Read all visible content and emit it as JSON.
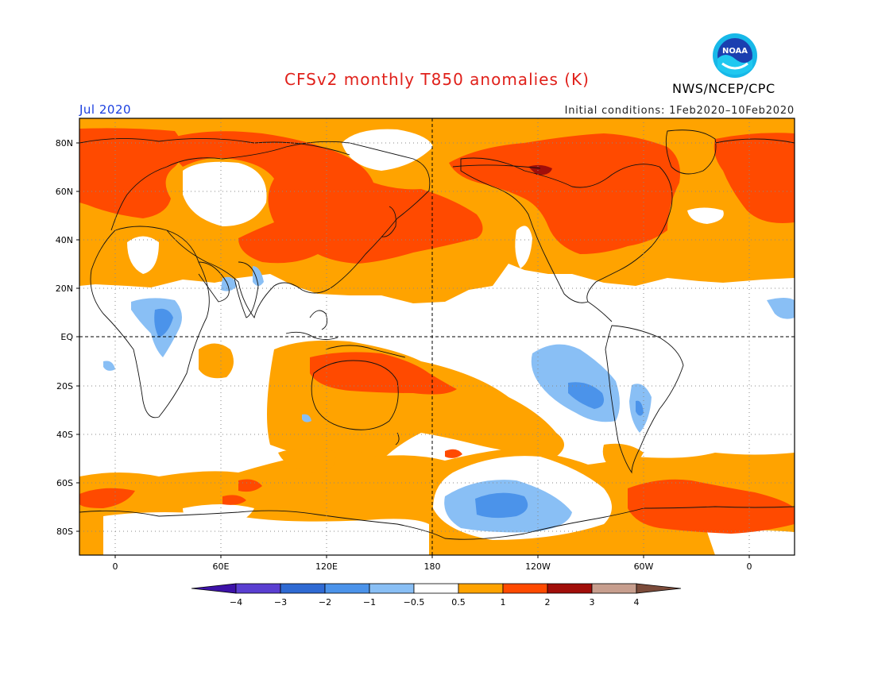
{
  "header": {
    "title": "CFSv2 monthly T850 anomalies (K)",
    "valid_month": "Jul 2020",
    "initial_conditions": "Initial conditions: 1Feb2020–10Feb2020",
    "agency": "NWS/NCEP/CPC",
    "logo_text": "NOAA"
  },
  "map": {
    "lat_labels": [
      "80N",
      "60N",
      "40N",
      "20N",
      "EQ",
      "20S",
      "40S",
      "60S",
      "80S"
    ],
    "lon_labels": [
      "0",
      "60E",
      "120E",
      "180",
      "120W",
      "60W",
      "0"
    ]
  },
  "colorbar": {
    "labels": [
      "−4",
      "−3",
      "−2",
      "−1",
      "−0.5",
      "0.5",
      "1",
      "2",
      "3",
      "4"
    ],
    "colors": [
      "#3d12a8",
      "#5a3fd1",
      "#2f6ad3",
      "#4b93ea",
      "#89bff5",
      "#ffffff",
      "#ffa300",
      "#ff4a00",
      "#a10e0a",
      "#c79e8e",
      "#7b4b3a"
    ]
  }
}
